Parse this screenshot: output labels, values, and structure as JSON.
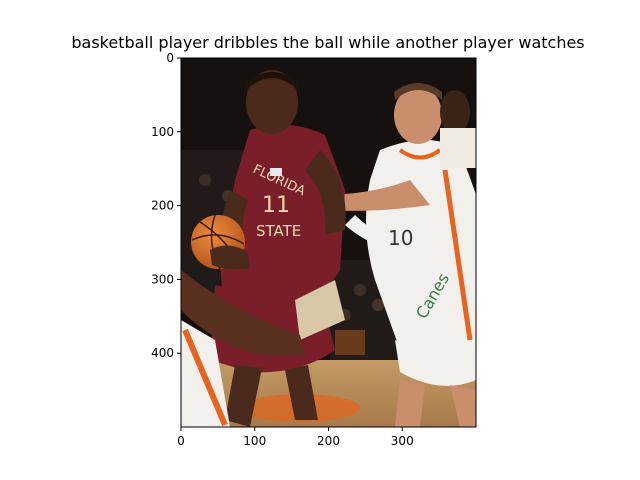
{
  "figure": {
    "title": "basketball player dribbles the ball while another player watches"
  },
  "image": {
    "subject": "basketball players",
    "colors": {
      "background_dark": "#16110f",
      "court_floor": "#b48a5a",
      "fsu_jersey": "#7a1f2a",
      "white_jersey": "#f2f0ec",
      "orange_trim": "#e8641e",
      "ball": "#d2691e",
      "skin_dark": "#4a2a1c",
      "skin_light": "#c98f6c"
    }
  },
  "axes": {
    "x_ticks": [
      {
        "value": 0,
        "label": "0"
      },
      {
        "value": 100,
        "label": "100"
      },
      {
        "value": 200,
        "label": "200"
      },
      {
        "value": 300,
        "label": "300"
      }
    ],
    "y_ticks": [
      {
        "value": 0,
        "label": "0"
      },
      {
        "value": 100,
        "label": "100"
      },
      {
        "value": 200,
        "label": "200"
      },
      {
        "value": 300,
        "label": "300"
      },
      {
        "value": 400,
        "label": "400"
      }
    ],
    "x_range": [
      0,
      400
    ],
    "y_range": [
      0,
      500
    ]
  }
}
